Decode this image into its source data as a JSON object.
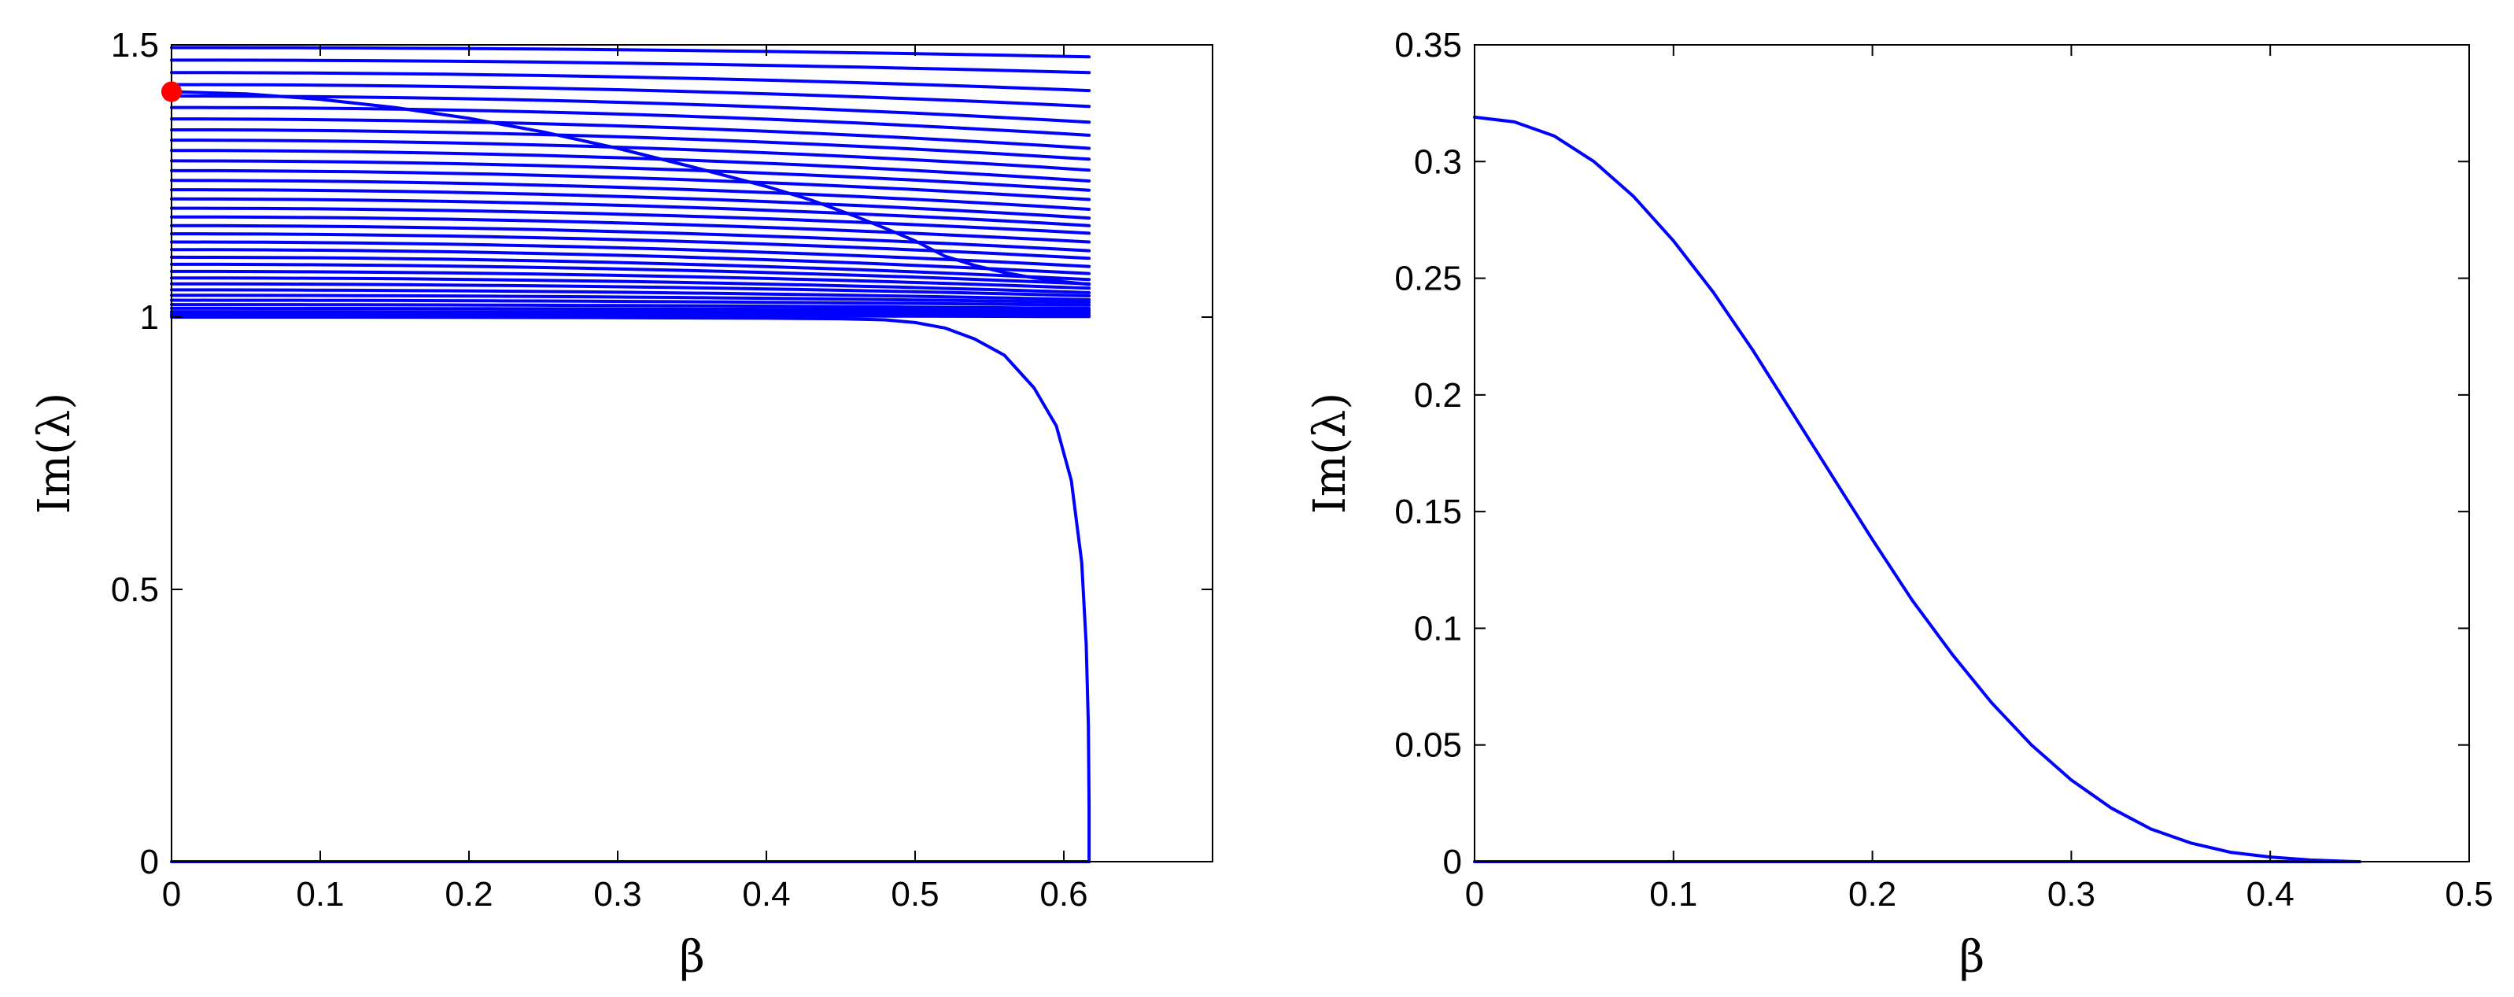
{
  "colors": {
    "line": "#0000ff",
    "marker": "#ff0000",
    "axis": "#000000",
    "background": "#ffffff"
  },
  "chart_data": [
    {
      "type": "line",
      "xlabel": "β",
      "ylabel": "Im(λ)",
      "xlim": [
        0,
        0.7
      ],
      "ylim": [
        0,
        1.5
      ],
      "xticks": [
        0,
        0.1,
        0.2,
        0.3,
        0.4,
        0.5,
        0.6
      ],
      "xtick_labels": [
        "0",
        "0.1",
        "0.2",
        "0.3",
        "0.4",
        "0.5",
        "0.6"
      ],
      "yticks": [
        0,
        0.5,
        1,
        1.5
      ],
      "ytick_labels": [
        "0",
        "0.5",
        "1",
        "1.5"
      ],
      "grid": false,
      "band_lines": {
        "x_range": [
          0,
          0.617
        ],
        "start_values": [
          1.495,
          1.472,
          1.449,
          1.427,
          1.406,
          1.385,
          1.364,
          1.344,
          1.325,
          1.306,
          1.287,
          1.269,
          1.251,
          1.234,
          1.217,
          1.2,
          1.184,
          1.168,
          1.153,
          1.138,
          1.124,
          1.11,
          1.097,
          1.084,
          1.072,
          1.061,
          1.05,
          1.04,
          1.031,
          1.023,
          1.016,
          1.01,
          1.006,
          1.003
        ],
        "end_values": [
          1.478,
          1.449,
          1.416,
          1.387,
          1.358,
          1.334,
          1.31,
          1.29,
          1.27,
          1.25,
          1.233,
          1.216,
          1.198,
          1.182,
          1.168,
          1.154,
          1.138,
          1.122,
          1.108,
          1.093,
          1.08,
          1.069,
          1.061,
          1.053,
          1.045,
          1.039,
          1.032,
          1.027,
          1.022,
          1.016,
          1.012,
          1.008,
          1.004,
          1.001
        ]
      },
      "series": [
        {
          "x": [
            0,
            0.05,
            0.1,
            0.15,
            0.2,
            0.25,
            0.3,
            0.35,
            0.4,
            0.43,
            0.46,
            0.48,
            0.5,
            0.52,
            0.54,
            0.56,
            0.58,
            0.6,
            0.617
          ],
          "values": [
            1.414,
            1.41,
            1.4,
            1.385,
            1.365,
            1.34,
            1.31,
            1.276,
            1.24,
            1.215,
            1.185,
            1.163,
            1.14,
            1.112,
            1.095,
            1.082,
            1.072,
            1.065,
            1.06
          ]
        },
        {
          "x": [
            0,
            0.1,
            0.2,
            0.3,
            0.4,
            0.45,
            0.48,
            0.5,
            0.52,
            0.54,
            0.56,
            0.58,
            0.595,
            0.605,
            0.612,
            0.615,
            0.6165,
            0.617,
            0.617
          ],
          "values": [
            1.0,
            1.0,
            0.9995,
            0.999,
            0.998,
            0.997,
            0.995,
            0.99,
            0.98,
            0.96,
            0.93,
            0.87,
            0.8,
            0.7,
            0.55,
            0.4,
            0.25,
            0.1,
            0.0
          ]
        },
        {
          "x": [
            0,
            0.617
          ],
          "values": [
            0,
            0
          ]
        }
      ],
      "markers": [
        {
          "x": 0,
          "y": 1.414
        }
      ]
    },
    {
      "type": "line",
      "xlabel": "β",
      "ylabel": "Im(λ)",
      "xlim": [
        0,
        0.5
      ],
      "ylim": [
        0,
        0.35
      ],
      "xticks": [
        0,
        0.1,
        0.2,
        0.3,
        0.4,
        0.5
      ],
      "xtick_labels": [
        "0",
        "0.1",
        "0.2",
        "0.3",
        "0.4",
        "0.5"
      ],
      "yticks": [
        0,
        0.05,
        0.1,
        0.15,
        0.2,
        0.25,
        0.3,
        0.35
      ],
      "ytick_labels": [
        "0",
        "0.05",
        "0.1",
        "0.15",
        "0.2",
        "0.25",
        "0.3",
        "0.35"
      ],
      "grid": false,
      "series": [
        {
          "x": [
            0,
            0.02,
            0.04,
            0.06,
            0.08,
            0.1,
            0.12,
            0.14,
            0.16,
            0.18,
            0.2,
            0.22,
            0.24,
            0.26,
            0.28,
            0.3,
            0.32,
            0.34,
            0.36,
            0.38,
            0.4,
            0.42,
            0.44,
            0.445
          ],
          "values": [
            0.319,
            0.317,
            0.311,
            0.3,
            0.285,
            0.266,
            0.244,
            0.219,
            0.192,
            0.165,
            0.138,
            0.112,
            0.089,
            0.068,
            0.05,
            0.035,
            0.023,
            0.014,
            0.008,
            0.004,
            0.002,
            0.0007,
            0.0001,
            0.0
          ]
        },
        {
          "x": [
            0,
            0.445
          ],
          "values": [
            0,
            0
          ]
        }
      ]
    }
  ]
}
